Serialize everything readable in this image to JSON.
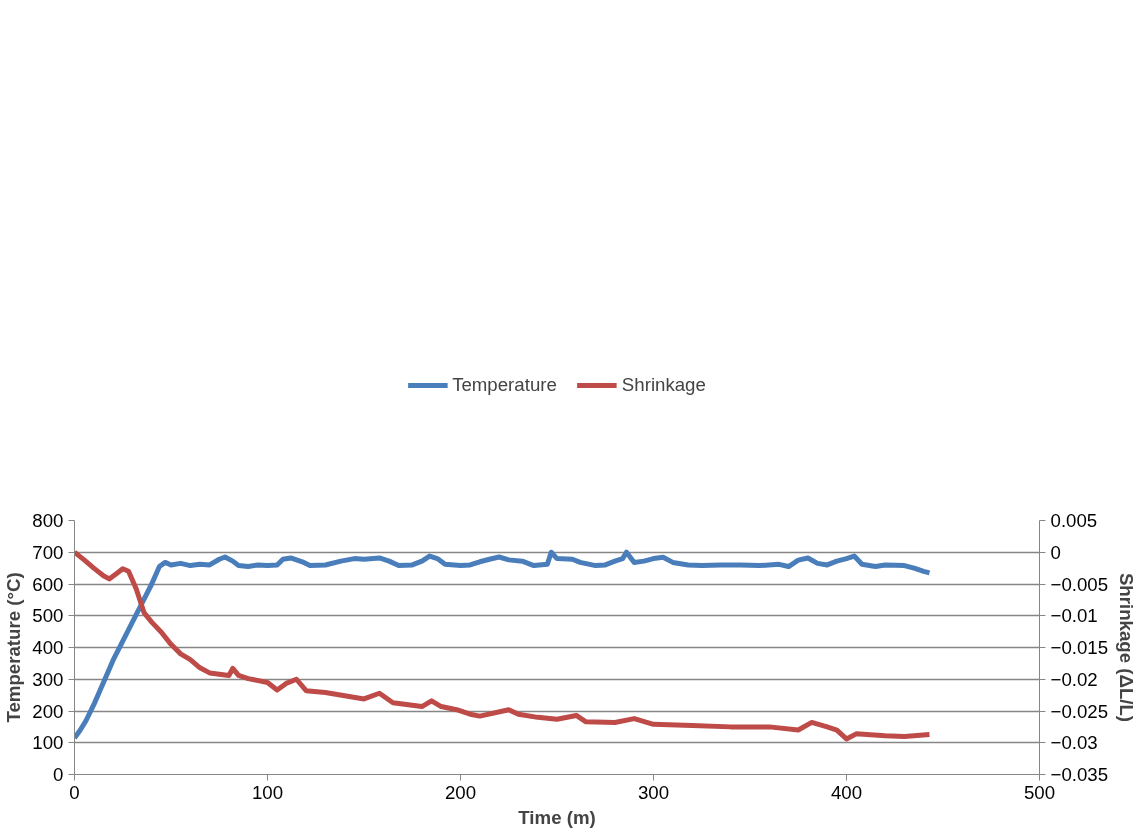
{
  "chart_data": {
    "type": "line",
    "xlabel": "Time (m)",
    "ylabel": "Temperature (°C)",
    "y2label": "Shrinkage (ΔL/L)",
    "xlim": [
      0,
      500
    ],
    "xticks": [
      0,
      100,
      200,
      300,
      400,
      500
    ],
    "ylim": [
      0,
      800
    ],
    "yticks": [
      0,
      100,
      200,
      300,
      400,
      500,
      600,
      700,
      800
    ],
    "y2lim": [
      -0.035,
      0.005
    ],
    "y2ticks": [
      -0.035,
      -0.03,
      -0.025,
      -0.02,
      -0.015,
      -0.01,
      -0.005,
      0,
      0.005
    ],
    "grid": "y",
    "legend": "top",
    "line_style": "solid",
    "marker": "none",
    "series": [
      {
        "name": "Temperature",
        "color": "#4a7ebb",
        "x": [
          0,
          3,
          6,
          10,
          15,
          20,
          25,
          30,
          35,
          40,
          44,
          47,
          50,
          55,
          60,
          65,
          70,
          75,
          78,
          82,
          85,
          90,
          95,
          100,
          105,
          108,
          112,
          118,
          122,
          130,
          138,
          145,
          150,
          158,
          163,
          168,
          175,
          180,
          184,
          188,
          192,
          200,
          205,
          210,
          215,
          220,
          225,
          232,
          238,
          245,
          247,
          250,
          258,
          262,
          270,
          275,
          280,
          284,
          286,
          290,
          295,
          300,
          305,
          310,
          318,
          325,
          335,
          345,
          355,
          365,
          370,
          375,
          380,
          385,
          390,
          395,
          400,
          404,
          408,
          415,
          420,
          430,
          435,
          440,
          443
        ],
        "values": [
          115,
          140,
          170,
          220,
          290,
          360,
          420,
          480,
          540,
          600,
          655,
          668,
          660,
          665,
          658,
          662,
          660,
          678,
          685,
          672,
          658,
          655,
          660,
          658,
          660,
          678,
          682,
          670,
          658,
          660,
          672,
          680,
          678,
          682,
          672,
          658,
          660,
          672,
          688,
          680,
          662,
          658,
          660,
          670,
          678,
          685,
          676,
          672,
          658,
          662,
          700,
          680,
          678,
          668,
          658,
          660,
          672,
          680,
          700,
          668,
          672,
          680,
          684,
          668,
          660,
          658,
          660,
          660,
          658,
          662,
          655,
          675,
          682,
          665,
          660,
          672,
          680,
          688,
          662,
          655,
          660,
          658,
          650,
          640,
          635
        ]
      },
      {
        "name": "Shrinkage",
        "color": "#be4b48",
        "axis": "y2",
        "x": [
          0,
          5,
          10,
          15,
          18,
          22,
          25,
          28,
          32,
          36,
          40,
          45,
          50,
          55,
          60,
          65,
          70,
          75,
          80,
          82,
          85,
          90,
          100,
          105,
          110,
          115,
          120,
          130,
          140,
          150,
          158,
          165,
          180,
          185,
          190,
          198,
          205,
          210,
          225,
          230,
          240,
          250,
          260,
          265,
          280,
          290,
          300,
          320,
          340,
          360,
          375,
          382,
          390,
          395,
          400,
          405,
          420,
          430,
          443
        ],
        "values": [
          0,
          -0.0012,
          -0.0025,
          -0.0037,
          -0.0042,
          -0.0033,
          -0.0026,
          -0.003,
          -0.0058,
          -0.0095,
          -0.011,
          -0.0126,
          -0.0145,
          -0.016,
          -0.0169,
          -0.0182,
          -0.019,
          -0.0192,
          -0.0194,
          -0.0183,
          -0.0194,
          -0.0199,
          -0.0205,
          -0.0217,
          -0.0206,
          -0.02,
          -0.0218,
          -0.0221,
          -0.0226,
          -0.0231,
          -0.0222,
          -0.0237,
          -0.0243,
          -0.0234,
          -0.0243,
          -0.0248,
          -0.0255,
          -0.0258,
          -0.0248,
          -0.0255,
          -0.026,
          -0.0263,
          -0.0257,
          -0.0267,
          -0.0268,
          -0.0262,
          -0.0271,
          -0.0273,
          -0.0275,
          -0.0275,
          -0.028,
          -0.0268,
          -0.0275,
          -0.028,
          -0.0294,
          -0.0286,
          -0.0289,
          -0.029,
          -0.0287
        ]
      }
    ]
  }
}
